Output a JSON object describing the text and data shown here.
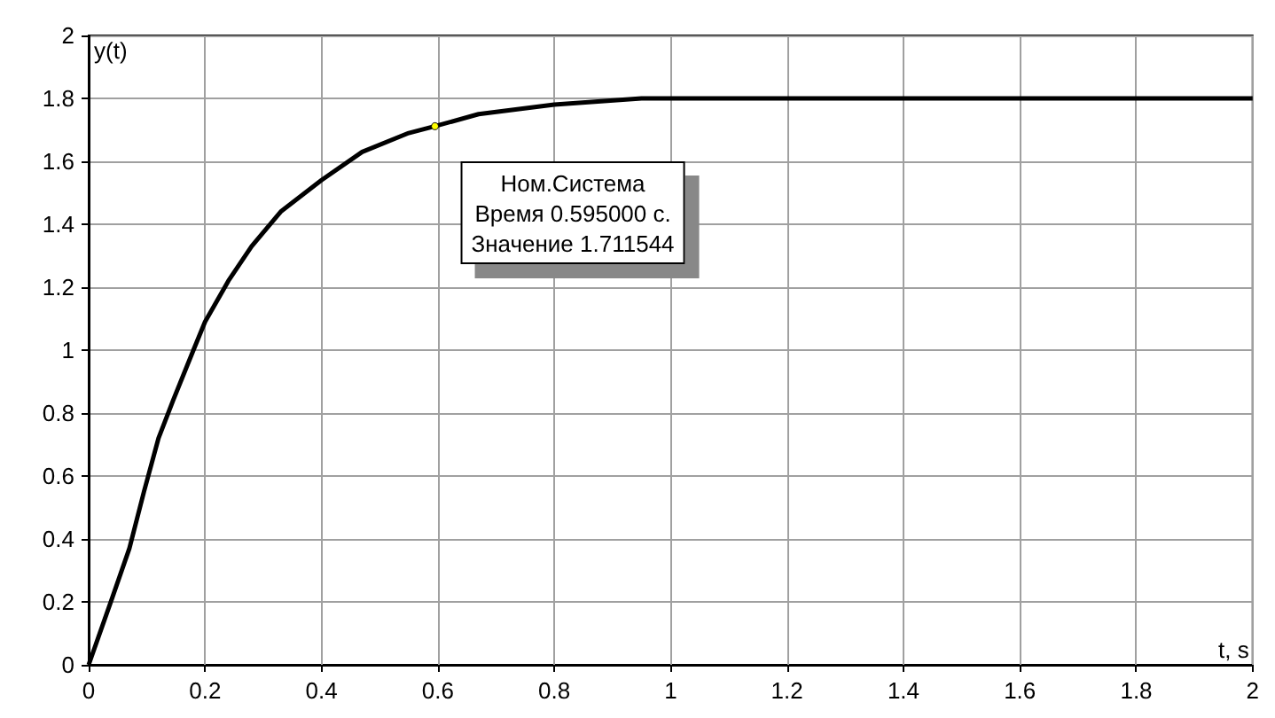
{
  "chart_data": {
    "type": "line",
    "xlabel": "t, s",
    "ylabel": "y(t)",
    "x": [
      0,
      0.04,
      0.07,
      0.095,
      0.12,
      0.145,
      0.18,
      0.2,
      0.24,
      0.28,
      0.33,
      0.4,
      0.47,
      0.55,
      0.595,
      0.67,
      0.8,
      0.95,
      1.1,
      1.4,
      1.7,
      2
    ],
    "series": [
      {
        "color": "#000000",
        "values": [
          0,
          0.21,
          0.37,
          0.55,
          0.72,
          0.84,
          1,
          1.09,
          1.22,
          1.33,
          1.44,
          1.54,
          1.63,
          1.69,
          1.711544,
          1.75,
          1.78,
          1.8,
          1.8,
          1.8,
          1.8,
          1.8
        ]
      }
    ],
    "xlim": [
      0,
      2
    ],
    "xticks": [
      0,
      0.2,
      0.4,
      0.6,
      0.8,
      1,
      1.2,
      1.4,
      1.6,
      1.8,
      2
    ],
    "ylim": [
      0,
      2
    ],
    "yticks": [
      0,
      0.2,
      0.4,
      0.6,
      0.8,
      1,
      1.2,
      1.4,
      1.6,
      1.8,
      2
    ],
    "grid": true,
    "marker": "none",
    "line_style": "solid",
    "annotations": [
      {
        "text": "Ном.Система\nВремя 0.595000 с.\nЗначение 1.711544",
        "x": 0.595,
        "y": 1.711544
      }
    ]
  }
}
